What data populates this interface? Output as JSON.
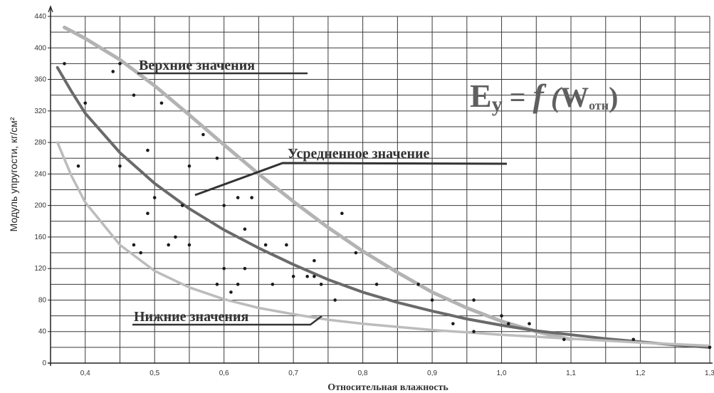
{
  "chart_data": {
    "type": "scatter",
    "xlabel": "Относительная влажность",
    "ylabel": "Модуль упругости, кг/см²",
    "xlim": [
      0.35,
      1.3
    ],
    "ylim": [
      0,
      440
    ],
    "x_ticks": [
      "0,4",
      "0,5",
      "0,6",
      "0,7",
      "0,8",
      "0,9",
      "1,0",
      "1,1",
      "1,2",
      "1,3"
    ],
    "y_ticks": [
      "0",
      "40",
      "80",
      "120",
      "160",
      "200",
      "240",
      "280",
      "320",
      "360",
      "400",
      "440"
    ],
    "grid": true,
    "points": [
      {
        "x": 0.37,
        "y": 380
      },
      {
        "x": 0.39,
        "y": 250
      },
      {
        "x": 0.4,
        "y": 330
      },
      {
        "x": 0.44,
        "y": 370
      },
      {
        "x": 0.45,
        "y": 380
      },
      {
        "x": 0.45,
        "y": 250
      },
      {
        "x": 0.47,
        "y": 340
      },
      {
        "x": 0.47,
        "y": 150
      },
      {
        "x": 0.48,
        "y": 140
      },
      {
        "x": 0.49,
        "y": 270
      },
      {
        "x": 0.49,
        "y": 190
      },
      {
        "x": 0.5,
        "y": 210
      },
      {
        "x": 0.51,
        "y": 330
      },
      {
        "x": 0.52,
        "y": 150
      },
      {
        "x": 0.53,
        "y": 160
      },
      {
        "x": 0.54,
        "y": 200
      },
      {
        "x": 0.55,
        "y": 250
      },
      {
        "x": 0.55,
        "y": 150
      },
      {
        "x": 0.57,
        "y": 290
      },
      {
        "x": 0.59,
        "y": 260
      },
      {
        "x": 0.59,
        "y": 100
      },
      {
        "x": 0.6,
        "y": 200
      },
      {
        "x": 0.6,
        "y": 120
      },
      {
        "x": 0.61,
        "y": 90
      },
      {
        "x": 0.62,
        "y": 210
      },
      {
        "x": 0.62,
        "y": 100
      },
      {
        "x": 0.63,
        "y": 170
      },
      {
        "x": 0.63,
        "y": 120
      },
      {
        "x": 0.64,
        "y": 210
      },
      {
        "x": 0.66,
        "y": 150
      },
      {
        "x": 0.67,
        "y": 100
      },
      {
        "x": 0.69,
        "y": 150
      },
      {
        "x": 0.7,
        "y": 110
      },
      {
        "x": 0.72,
        "y": 110
      },
      {
        "x": 0.73,
        "y": 130
      },
      {
        "x": 0.73,
        "y": 110
      },
      {
        "x": 0.74,
        "y": 100
      },
      {
        "x": 0.76,
        "y": 80
      },
      {
        "x": 0.77,
        "y": 190
      },
      {
        "x": 0.79,
        "y": 140
      },
      {
        "x": 0.82,
        "y": 100
      },
      {
        "x": 0.88,
        "y": 100
      },
      {
        "x": 0.9,
        "y": 80
      },
      {
        "x": 0.93,
        "y": 50
      },
      {
        "x": 0.96,
        "y": 80
      },
      {
        "x": 0.96,
        "y": 40
      },
      {
        "x": 1.0,
        "y": 60
      },
      {
        "x": 1.01,
        "y": 50
      },
      {
        "x": 1.04,
        "y": 50
      },
      {
        "x": 1.09,
        "y": 30
      },
      {
        "x": 1.19,
        "y": 30
      },
      {
        "x": 1.3,
        "y": 20
      }
    ],
    "curves": [
      {
        "label": "Верхние значения",
        "color": "#b3b3b3",
        "x": [
          0.37,
          0.4,
          0.45,
          0.5,
          0.55,
          0.6,
          0.65,
          0.7,
          0.75,
          0.8,
          0.85,
          0.9,
          0.95,
          1.0,
          1.05,
          1.1
        ],
        "y": [
          426,
          412,
          385,
          352,
          315,
          277,
          240,
          205,
          172,
          142,
          115,
          90,
          70,
          53,
          40,
          30
        ]
      },
      {
        "label": "Усредненное значение",
        "color": "#6a6a6a",
        "x": [
          0.36,
          0.38,
          0.4,
          0.45,
          0.5,
          0.55,
          0.6,
          0.65,
          0.7,
          0.75,
          0.8,
          0.85,
          0.9,
          0.95,
          1.0,
          1.05,
          1.1,
          1.15,
          1.2,
          1.25,
          1.3
        ],
        "y": [
          375,
          345,
          317,
          267,
          228,
          196,
          169,
          146,
          125,
          106,
          90,
          77,
          66,
          56,
          48,
          41,
          36,
          31,
          27,
          23,
          20
        ]
      },
      {
        "label": "Нижние значения",
        "color": "#bcbcbc",
        "x": [
          0.36,
          0.38,
          0.4,
          0.45,
          0.5,
          0.55,
          0.6,
          0.65,
          0.7,
          0.75,
          0.8,
          0.85,
          0.9,
          0.95,
          1.0,
          1.1,
          1.2,
          1.3
        ],
        "y": [
          280,
          238,
          204,
          150,
          117,
          96,
          81,
          70,
          62,
          55,
          50,
          46,
          42,
          39,
          36,
          31,
          26,
          22
        ]
      }
    ],
    "annotations": {
      "upper": "Верхние значения",
      "average": "Усредненное значение",
      "lower": "Нижние значения"
    },
    "formula": {
      "E": "E",
      "sub_y": "у",
      "mid": " = ",
      "f": "f",
      "paren_open": " (",
      "W": "W",
      "sub_otn": "отн",
      "paren_close": ")"
    }
  }
}
